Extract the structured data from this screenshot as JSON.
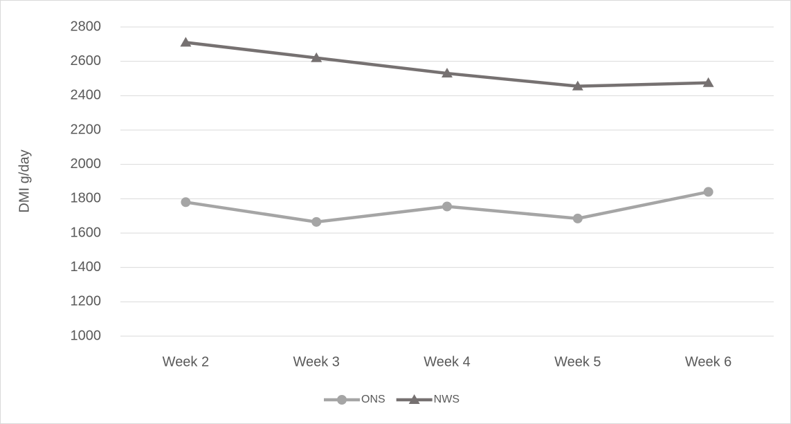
{
  "chart_data": {
    "type": "line",
    "y_label": "DMI g/day",
    "categories": [
      "Week 2",
      "Week 3",
      "Week 4",
      "Week 5",
      "Week 6"
    ],
    "series": [
      {
        "name": "ONS",
        "color": "#a5a5a5",
        "marker": "circle",
        "values": [
          1780,
          1665,
          1755,
          1685,
          1840
        ]
      },
      {
        "name": "NWS",
        "color": "#767171",
        "marker": "triangle",
        "values": [
          2710,
          2620,
          2530,
          2455,
          2475
        ]
      }
    ],
    "ylim": [
      1000,
      2800
    ],
    "yticks": [
      1000,
      1200,
      1400,
      1600,
      1800,
      2000,
      2200,
      2400,
      2600,
      2800
    ],
    "grid": true,
    "legend": "bottom"
  }
}
